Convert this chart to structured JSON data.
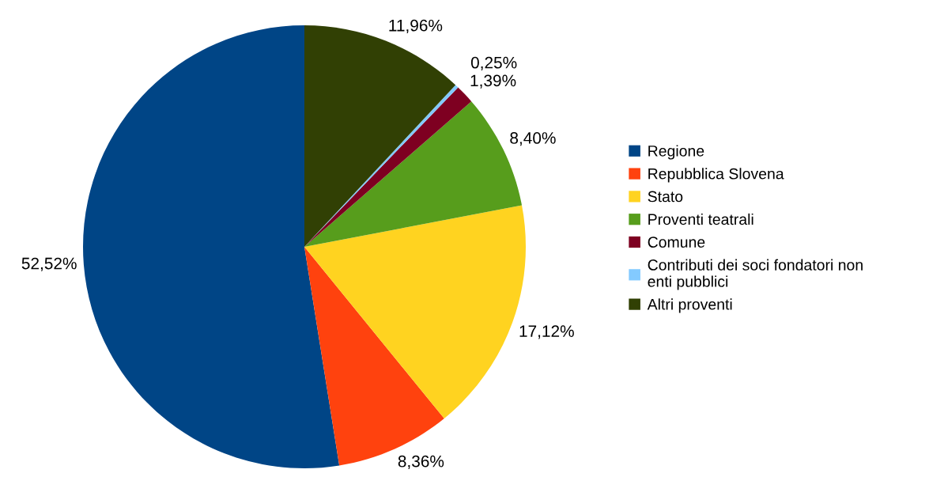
{
  "chart_data": {
    "type": "pie",
    "categories": [
      "Regione",
      "Repubblica Slovena",
      "Stato",
      "Proventi teatrali",
      "Comune",
      "Contributi dei soci fondatori non\nenti pubblici",
      "Altri proventi"
    ],
    "values": [
      52.52,
      8.36,
      17.12,
      8.4,
      1.39,
      0.25,
      11.96
    ],
    "colors": [
      "#004586",
      "#ff420e",
      "#ffd320",
      "#579d1c",
      "#7e0021",
      "#83caff",
      "#314004"
    ],
    "value_labels": [
      "52,52%",
      "8,36%",
      "17,12%",
      "8,40%",
      "1,39%",
      "0,25%",
      "11,96%"
    ],
    "legend": "right"
  }
}
